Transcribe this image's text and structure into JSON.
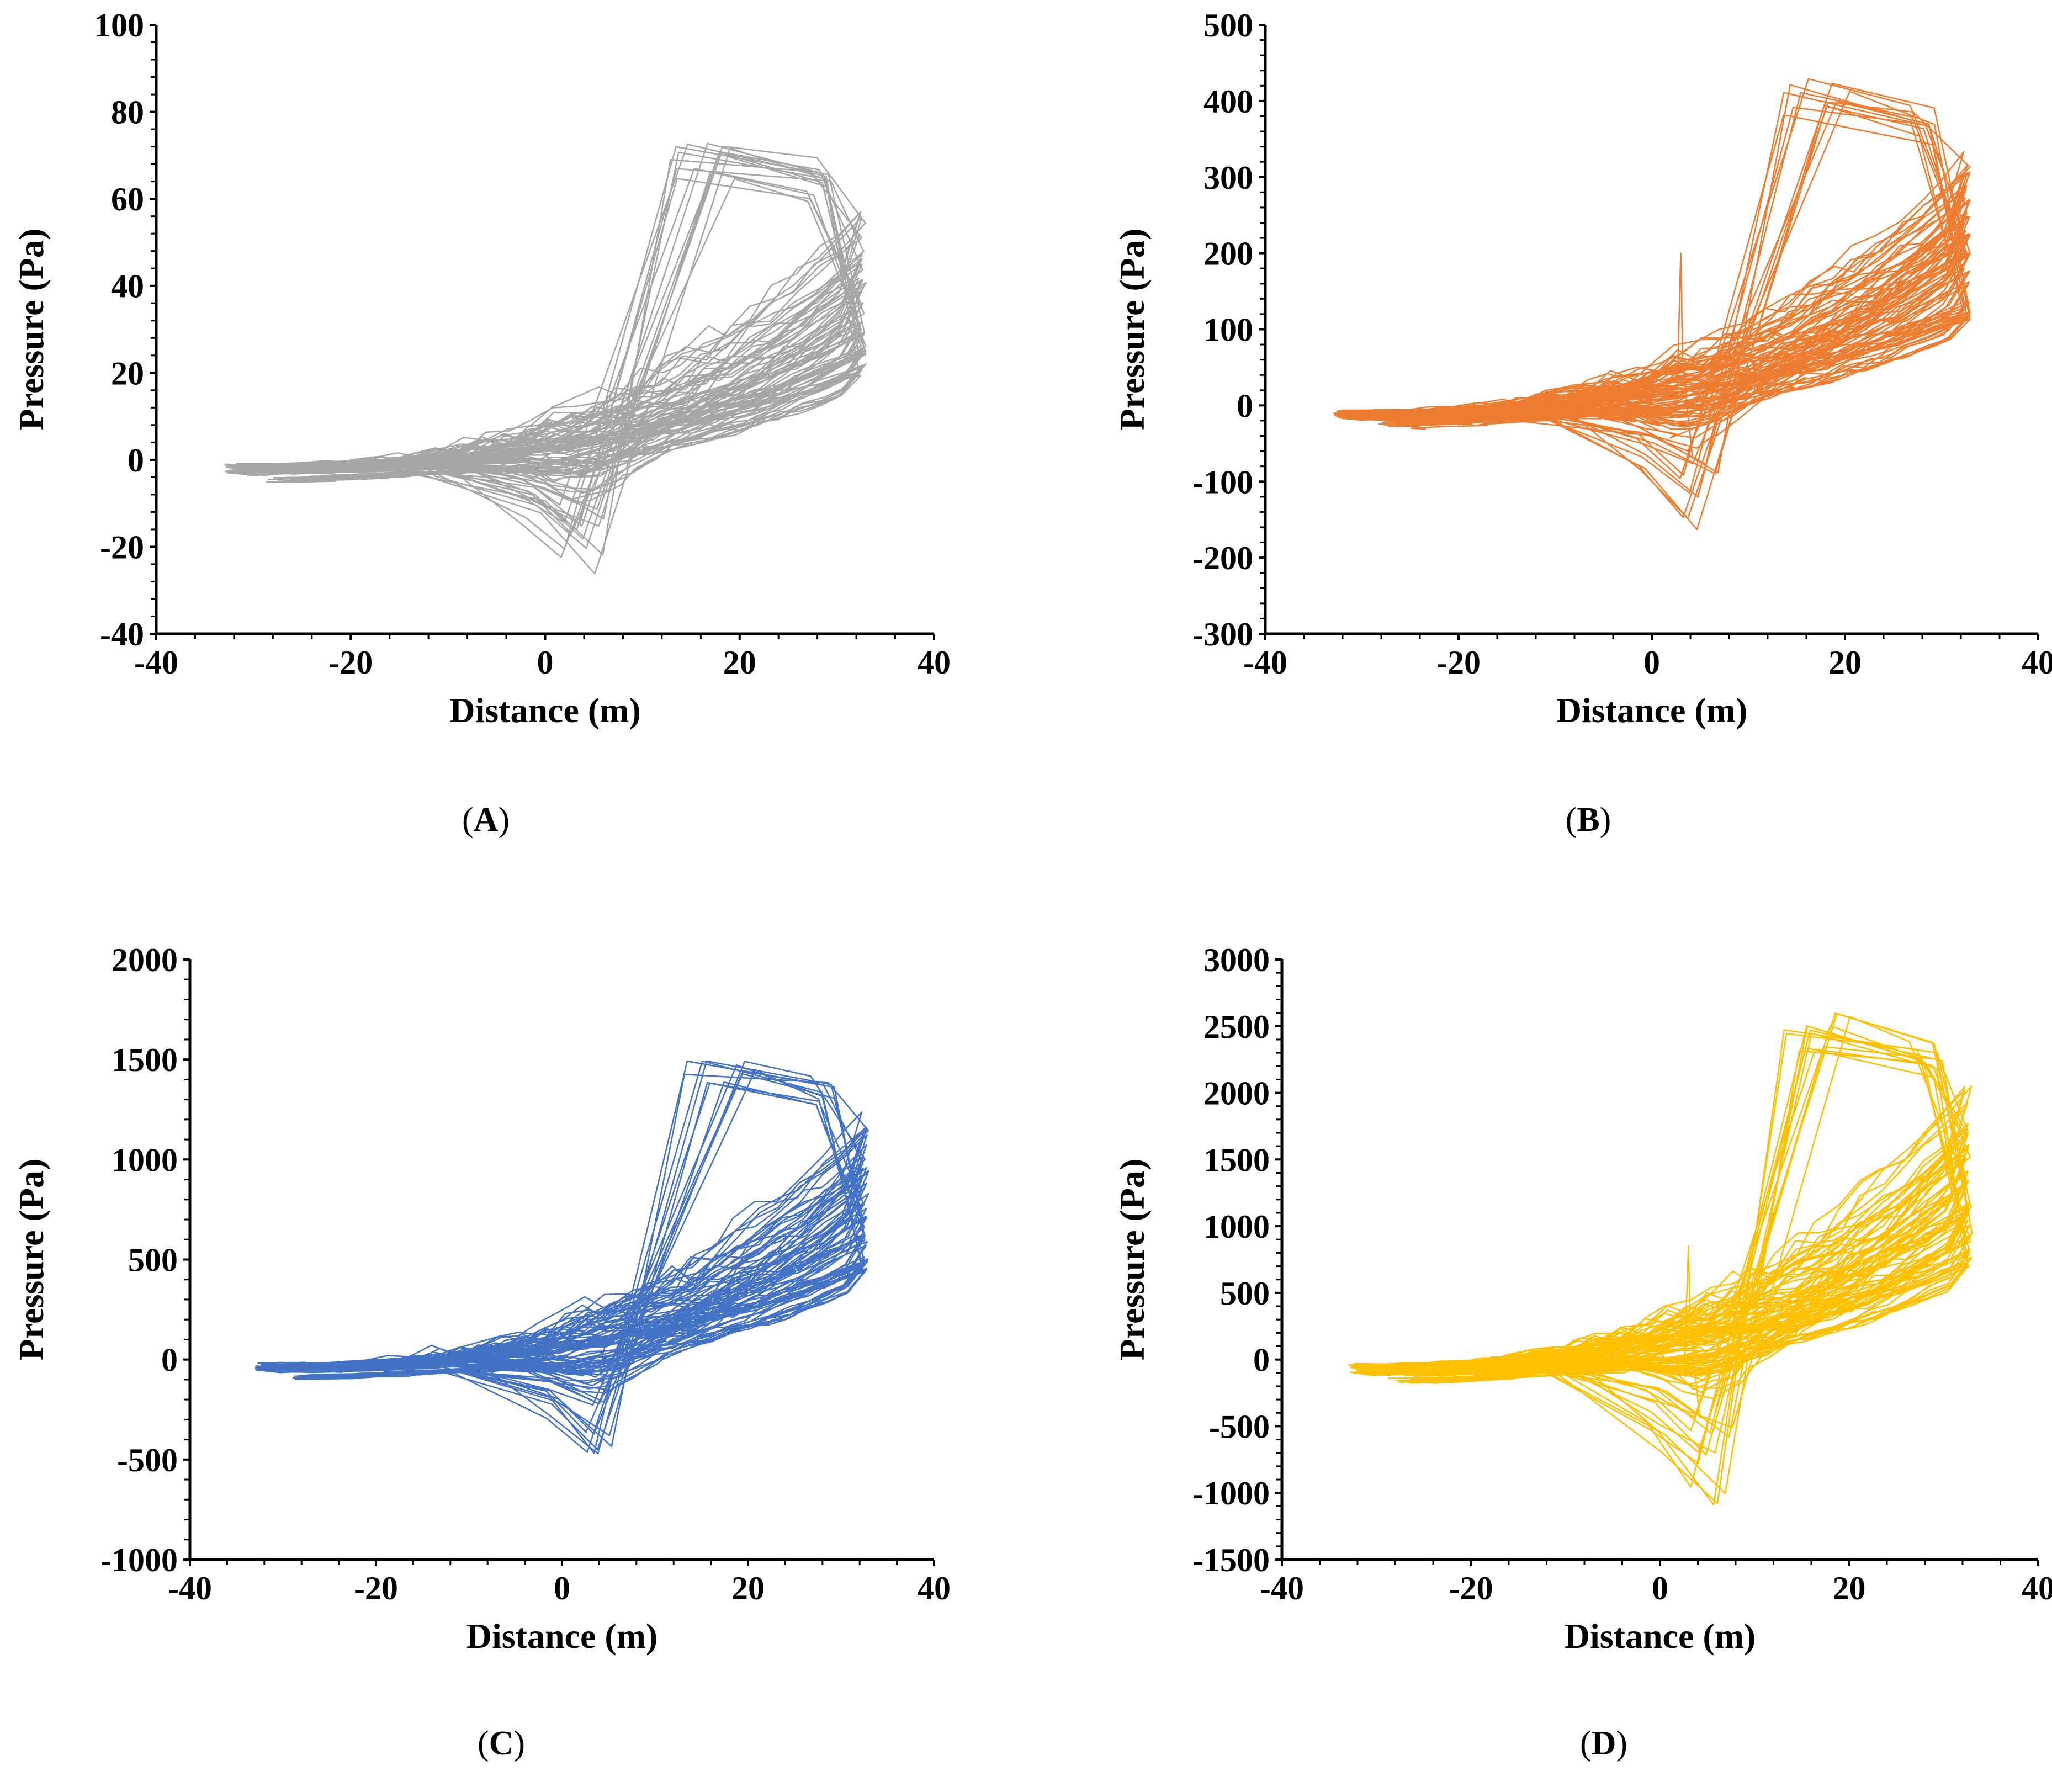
{
  "figure": {
    "description_free": true
  },
  "chart_data": [
    {
      "id": "A",
      "type": "line",
      "label": "A",
      "label_text": [
        "(",
        "A",
        ")"
      ],
      "color": "#A6A6A6",
      "xlabel": "Distance (m)",
      "ylabel": "Pressure (Pa)",
      "xlim": [
        -40,
        40
      ],
      "ylim": [
        -40,
        100
      ],
      "xticks": [
        -40,
        -20,
        0,
        20,
        40
      ],
      "yticks": [
        -40,
        -20,
        0,
        20,
        40,
        60,
        80,
        100
      ],
      "x_extent": [
        -33,
        33
      ],
      "peak": {
        "x": 15,
        "y": 73
      },
      "trough": {
        "x": 4,
        "y": -27
      },
      "end_max": 60,
      "end_min": 20,
      "left_min": -6,
      "series_count": 48,
      "spike": null,
      "grid": false
    },
    {
      "id": "B",
      "type": "line",
      "label": "B",
      "label_text": [
        "(",
        "B",
        ")"
      ],
      "color": "#ED7D31",
      "xlabel": "Distance (m)",
      "ylabel": "Pressure (Pa)",
      "xlim": [
        -40,
        40
      ],
      "ylim": [
        -300,
        500
      ],
      "xticks": [
        -40,
        -20,
        0,
        20,
        40
      ],
      "yticks": [
        -300,
        -200,
        -100,
        0,
        100,
        200,
        300,
        400,
        500
      ],
      "x_extent": [
        -33,
        33
      ],
      "peak": {
        "x": 15,
        "y": 430
      },
      "trough": {
        "x": 4.5,
        "y": -170
      },
      "end_max": 350,
      "end_min": 115,
      "left_min": -35,
      "series_count": 52,
      "spike": {
        "x": 3,
        "y": 200
      },
      "grid": false
    },
    {
      "id": "C",
      "type": "line",
      "label": "C",
      "label_text": [
        "(",
        "C",
        ")"
      ],
      "color": "#4472C4",
      "xlabel": "Distance (m)",
      "ylabel": "Pressure (Pa)",
      "xlim": [
        -40,
        40
      ],
      "ylim": [
        -1000,
        2000
      ],
      "xticks": [
        -40,
        -20,
        0,
        20,
        40
      ],
      "yticks": [
        -1000,
        -500,
        0,
        500,
        1000,
        1500,
        2000
      ],
      "x_extent": [
        -33,
        33
      ],
      "peak": {
        "x": 15.5,
        "y": 1550
      },
      "trough": {
        "x": 4,
        "y": -510
      },
      "end_max": 1280,
      "end_min": 450,
      "left_min": -110,
      "series_count": 48,
      "spike": null,
      "grid": false
    },
    {
      "id": "D",
      "type": "line",
      "label": "D",
      "label_text": [
        "(",
        "D",
        ")"
      ],
      "color": "#FFC000",
      "xlabel": "Distance (m)",
      "ylabel": "Pressure (Pa)",
      "xlim": [
        -40,
        40
      ],
      "ylim": [
        -1500,
        3000
      ],
      "xticks": [
        -40,
        -20,
        0,
        20,
        40
      ],
      "yticks": [
        -1500,
        -1000,
        -500,
        0,
        500,
        1000,
        1500,
        2000,
        2500,
        3000
      ],
      "x_extent": [
        -33,
        33
      ],
      "peak": {
        "x": 15,
        "y": 2610
      },
      "trough": {
        "x": 5.5,
        "y": -1100
      },
      "end_max": 2150,
      "end_min": 700,
      "left_min": -200,
      "series_count": 52,
      "spike": {
        "x": 3,
        "y": 850
      },
      "grid": false
    }
  ]
}
